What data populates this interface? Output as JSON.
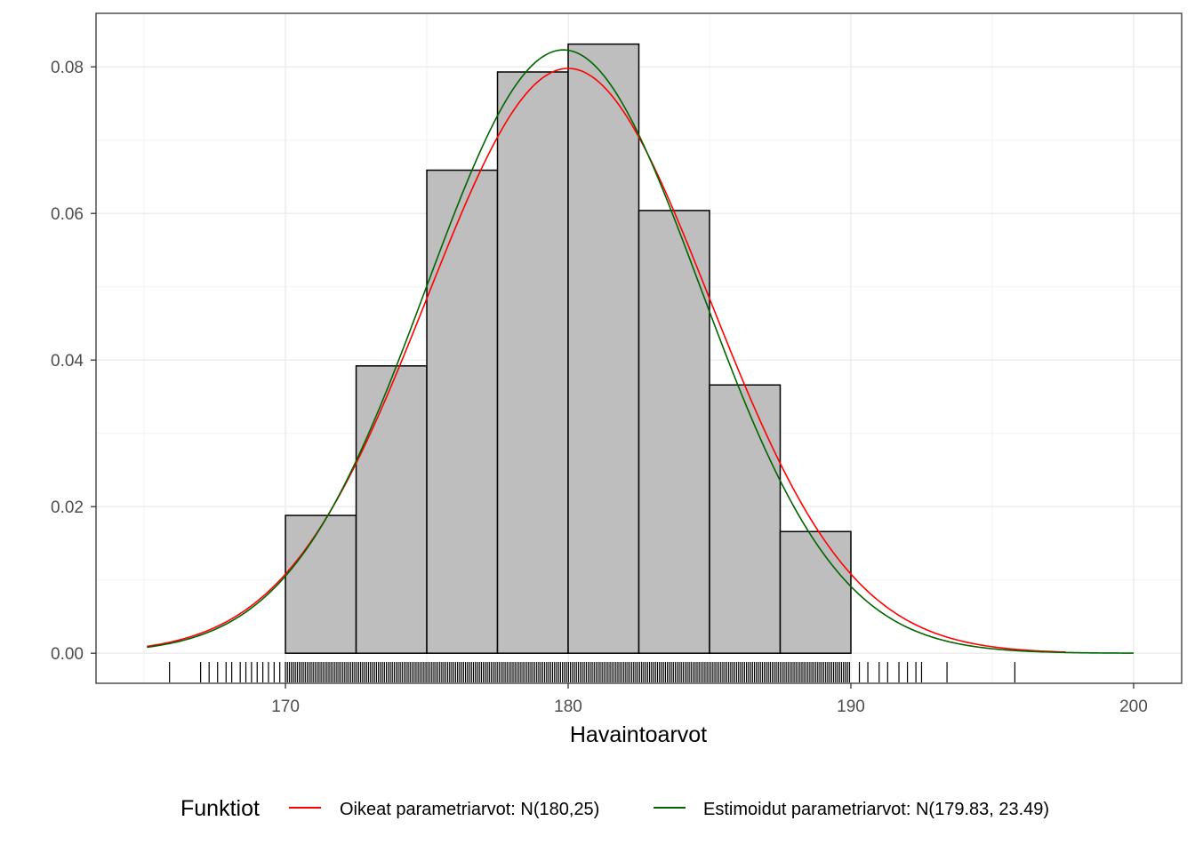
{
  "chart_data": {
    "type": "histogram",
    "xlabel": "Havaintoarvot",
    "ylabel": "",
    "xlim": [
      163.3,
      201.7
    ],
    "ylim": [
      -0.0041,
      0.0873
    ],
    "x_ticks": [
      170,
      180,
      190,
      200
    ],
    "y_ticks": [
      0.0,
      0.02,
      0.04,
      0.06,
      0.08
    ],
    "x_tick_labels": [
      "170",
      "180",
      "190",
      "200"
    ],
    "y_tick_labels": [
      "0.00",
      "0.02",
      "0.04",
      "0.06",
      "0.08"
    ],
    "grid": true,
    "bins": [
      {
        "x0": 170.0,
        "x1": 172.5,
        "density": 0.0188
      },
      {
        "x0": 172.5,
        "x1": 175.0,
        "density": 0.0392
      },
      {
        "x0": 175.0,
        "x1": 177.5,
        "density": 0.0659
      },
      {
        "x0": 177.5,
        "x1": 180.0,
        "density": 0.0793
      },
      {
        "x0": 180.0,
        "x1": 182.5,
        "density": 0.0831
      },
      {
        "x0": 182.5,
        "x1": 185.0,
        "density": 0.0604
      },
      {
        "x0": 185.0,
        "x1": 187.5,
        "density": 0.0366
      },
      {
        "x0": 187.5,
        "x1": 190.0,
        "density": 0.0166
      }
    ],
    "bar_fill": "#bebebe",
    "bar_stroke": "#000000",
    "curves": [
      {
        "name": "Oikeat parametriarvot: N(180,25)",
        "mean": 180,
        "variance": 25,
        "x_range": [
          165.1,
          197.6
        ],
        "color": "#ff0000"
      },
      {
        "name": "Estimoidut parametriarvot: N(179.83, 23.49)",
        "mean": 179.83,
        "variance": 23.49,
        "x_range": [
          165.1,
          200.0
        ],
        "color": "#006400"
      }
    ],
    "rug": {
      "outliers": [
        165.9,
        167.0,
        167.3,
        167.6,
        167.9,
        168.1,
        168.4,
        168.6,
        168.8,
        169.0,
        169.2,
        169.4,
        169.6,
        169.8,
        190.3,
        190.6,
        191.0,
        191.3,
        191.7,
        192.0,
        192.3,
        192.5,
        193.4,
        195.8
      ],
      "dense_range": [
        170.0,
        190.0
      ],
      "color": "#000000"
    },
    "legend_title": "Funktiot",
    "legend_position": "bottom"
  }
}
